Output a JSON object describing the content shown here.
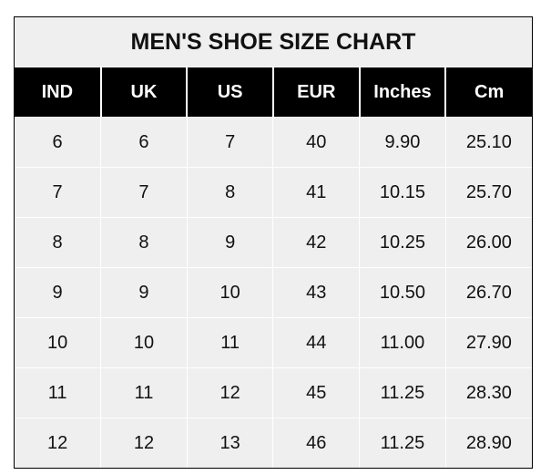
{
  "title": "MEN'S SHOE SIZE CHART",
  "headers": [
    "IND",
    "UK",
    "US",
    "EUR",
    "Inches",
    "Cm"
  ],
  "rows": [
    [
      "6",
      "6",
      "7",
      "40",
      "9.90",
      "25.10"
    ],
    [
      "7",
      "7",
      "8",
      "41",
      "10.15",
      "25.70"
    ],
    [
      "8",
      "8",
      "9",
      "42",
      "10.25",
      "26.00"
    ],
    [
      "9",
      "9",
      "10",
      "43",
      "10.50",
      "26.70"
    ],
    [
      "10",
      "10",
      "11",
      "44",
      "11.00",
      "27.90"
    ],
    [
      "11",
      "11",
      "12",
      "45",
      "11.25",
      "28.30"
    ],
    [
      "12",
      "12",
      "13",
      "46",
      "11.25",
      "28.90"
    ]
  ],
  "colors": {
    "header_bg": "#000000",
    "cell_bg": "#efefef"
  }
}
